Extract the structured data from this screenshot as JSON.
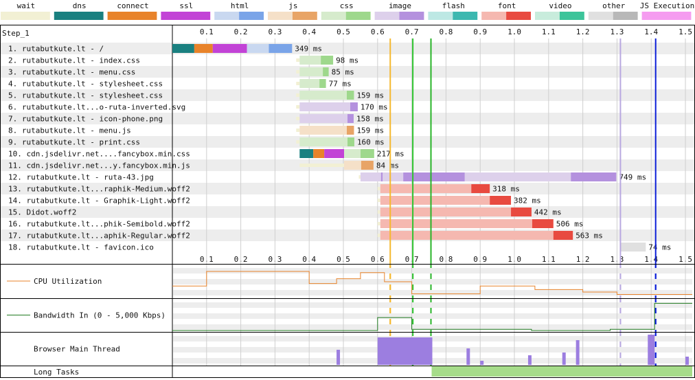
{
  "step_label": "Step_1",
  "legend": [
    {
      "label": "wait",
      "light": "#f2f0d4",
      "dark": "#f2f0d4"
    },
    {
      "label": "dns",
      "light": "#1a8080",
      "dark": "#1a8080"
    },
    {
      "label": "connect",
      "light": "#e8832a",
      "dark": "#e8832a"
    },
    {
      "label": "ssl",
      "light": "#c243d6",
      "dark": "#c243d6"
    },
    {
      "label": "html",
      "light": "#c9d8f0",
      "dark": "#7aa4e8"
    },
    {
      "label": "js",
      "light": "#f5e0c8",
      "dark": "#e8a466"
    },
    {
      "label": "css",
      "light": "#d6ebcc",
      "dark": "#9ed88c"
    },
    {
      "label": "image",
      "light": "#ddd0eb",
      "dark": "#b491de"
    },
    {
      "label": "flash",
      "light": "#bde8e4",
      "dark": "#3cb8b0"
    },
    {
      "label": "font",
      "light": "#f5b8b0",
      "dark": "#e84a40"
    },
    {
      "label": "video",
      "light": "#c8ecdc",
      "dark": "#3cc49a"
    },
    {
      "label": "other",
      "light": "#e0e0e0",
      "dark": "#b8b8b8"
    },
    {
      "label": "JS Execution",
      "light": "#f59cf0",
      "dark": "#f59cf0"
    }
  ],
  "axis": {
    "min": 0,
    "max": 1.52,
    "ticks": [
      "0.1",
      "0.2",
      "0.3",
      "0.4",
      "0.5",
      "0.6",
      "0.7",
      "0.8",
      "0.9",
      "1.0",
      "1.1",
      "1.2",
      "1.3",
      "1.4",
      "1.5"
    ]
  },
  "markers": [
    {
      "t": 0.637,
      "color": "#f5b82e"
    },
    {
      "t": 0.703,
      "color": "#2ec42e"
    },
    {
      "t": 0.756,
      "color": "#28b428"
    },
    {
      "t": 1.31,
      "color": "#b8a8e0"
    },
    {
      "t": 1.413,
      "color": "#0b1ed8"
    }
  ],
  "requests": [
    {
      "label": "1. rutabutkute.lt - /",
      "type": "html",
      "duration": "349 ms",
      "segs": [
        [
          "dns",
          0,
          0.064
        ],
        [
          "connect",
          0.064,
          0.118
        ],
        [
          "ssl",
          0.118,
          0.218
        ],
        [
          "ttfb",
          0.218,
          0.282
        ],
        [
          "dl",
          0.282,
          0.35
        ]
      ]
    },
    {
      "label": "2. rutabutkute.lt - index.css",
      "type": "css",
      "duration": "98 ms",
      "segs": [
        [
          "wait",
          0.362,
          0.372
        ],
        [
          "ttfb",
          0.372,
          0.434
        ],
        [
          "dl",
          0.434,
          0.47
        ]
      ]
    },
    {
      "label": "3. rutabutkute.lt - menu.css",
      "type": "css",
      "duration": "85 ms",
      "segs": [
        [
          "wait",
          0.362,
          0.372
        ],
        [
          "ttfb",
          0.372,
          0.44
        ],
        [
          "dl",
          0.44,
          0.457
        ]
      ]
    },
    {
      "label": "4. rutabutkute.lt - stylesheet.css",
      "type": "css",
      "duration": "77 ms",
      "segs": [
        [
          "wait",
          0.362,
          0.372
        ],
        [
          "ttfb",
          0.372,
          0.43
        ],
        [
          "dl",
          0.43,
          0.449
        ]
      ]
    },
    {
      "label": "5. rutabutkute.lt - stylesheet.css",
      "type": "css",
      "duration": "159 ms",
      "segs": [
        [
          "wait",
          0.362,
          0.372
        ],
        [
          "ttfb",
          0.372,
          0.51
        ],
        [
          "dl",
          0.51,
          0.531
        ]
      ]
    },
    {
      "label": "6. rutabutkute.lt...o-ruta-inverted.svg",
      "type": "image",
      "duration": "170 ms",
      "segs": [
        [
          "wait",
          0.362,
          0.372
        ],
        [
          "ttfb",
          0.372,
          0.52
        ],
        [
          "dl",
          0.52,
          0.542
        ]
      ]
    },
    {
      "label": "7. rutabutkute.lt - icon-phone.png",
      "type": "image",
      "duration": "158 ms",
      "segs": [
        [
          "wait",
          0.362,
          0.372
        ],
        [
          "ttfb",
          0.372,
          0.512
        ],
        [
          "dl",
          0.512,
          0.53
        ]
      ]
    },
    {
      "label": "8. rutabutkute.lt - menu.js",
      "type": "js",
      "duration": "159 ms",
      "segs": [
        [
          "wait",
          0.362,
          0.372
        ],
        [
          "ttfb",
          0.372,
          0.51
        ],
        [
          "dl",
          0.51,
          0.531
        ]
      ]
    },
    {
      "label": "9. rutabutkute.lt - print.css",
      "type": "css",
      "duration": "160 ms",
      "segs": [
        [
          "wait",
          0.362,
          0.372
        ],
        [
          "ttfb",
          0.372,
          0.512
        ],
        [
          "dl",
          0.512,
          0.532
        ]
      ]
    },
    {
      "label": "10. cdn.jsdelivr.net....fancybox.min.css",
      "type": "css",
      "duration": "217 ms",
      "segs": [
        [
          "dns",
          0.372,
          0.412
        ],
        [
          "connect",
          0.412,
          0.444
        ],
        [
          "ssl",
          0.444,
          0.502
        ],
        [
          "ttfb",
          0.502,
          0.55
        ],
        [
          "dl",
          0.55,
          0.59
        ]
      ]
    },
    {
      "label": "11. cdn.jsdelivr.net...y.fancybox.min.js",
      "type": "js",
      "duration": "84 ms",
      "segs": [
        [
          "wait",
          0.372,
          0.502
        ],
        [
          "ttfb",
          0.502,
          0.552
        ],
        [
          "dl",
          0.552,
          0.588
        ]
      ]
    },
    {
      "label": "12. rutabutkute.lt - ruta-43.jpg",
      "type": "image",
      "duration": "749 ms",
      "segs": [
        [
          "wait",
          0.545,
          0.55
        ],
        [
          "ttfb",
          0.55,
          0.61
        ],
        [
          "dl",
          0.61,
          0.615
        ],
        [
          "ttfb",
          0.615,
          0.675
        ],
        [
          "dl",
          0.675,
          0.855
        ],
        [
          "ttfb",
          0.855,
          1.165
        ],
        [
          "dl",
          1.165,
          1.298
        ]
      ]
    },
    {
      "label": "13. rutabutkute.lt...raphik-Medium.woff2",
      "type": "font",
      "duration": "318 ms",
      "segs": [
        [
          "wait",
          0.6,
          0.608
        ],
        [
          "ttfb",
          0.608,
          0.874
        ],
        [
          "dl",
          0.874,
          0.928
        ]
      ]
    },
    {
      "label": "14. rutabutkute.lt - Graphik-Light.woff2",
      "type": "font",
      "duration": "382 ms",
      "segs": [
        [
          "wait",
          0.6,
          0.608
        ],
        [
          "ttfb",
          0.608,
          0.928
        ],
        [
          "dl",
          0.928,
          0.99
        ]
      ]
    },
    {
      "label": "15. Didot.woff2",
      "type": "font",
      "duration": "442 ms",
      "segs": [
        [
          "wait",
          0.6,
          0.608
        ],
        [
          "ttfb",
          0.608,
          0.99
        ],
        [
          "dl",
          0.99,
          1.05
        ]
      ]
    },
    {
      "label": "16. rutabutkute.lt...phik-Semibold.woff2",
      "type": "font",
      "duration": "506 ms",
      "segs": [
        [
          "wait",
          0.6,
          0.608
        ],
        [
          "ttfb",
          0.608,
          1.052
        ],
        [
          "dl",
          1.052,
          1.114
        ]
      ]
    },
    {
      "label": "17. rutabutkute.lt...aphik-Regular.woff2",
      "type": "font",
      "duration": "563 ms",
      "segs": [
        [
          "wait",
          0.6,
          0.608
        ],
        [
          "ttfb",
          0.608,
          1.114
        ],
        [
          "dl",
          1.114,
          1.171
        ]
      ]
    },
    {
      "label": "18. rutabutkute.lt - favicon.ico",
      "type": "other",
      "duration": "74 ms",
      "segs": [
        [
          "ttfb",
          1.31,
          1.384
        ]
      ]
    }
  ],
  "panels": {
    "cpu": {
      "label": "CPU Utilization",
      "color": "#e8832a"
    },
    "bandwidth": {
      "label": "Bandwidth In (0 - 5,000 Kbps)",
      "color": "#1f7a1f"
    },
    "main_thread": {
      "label": "Browser Main Thread"
    },
    "long_tasks": {
      "label": "Long Tasks",
      "color": "#a6dc8a"
    }
  },
  "cpu_series": [
    [
      0,
      18
    ],
    [
      0.1,
      18
    ],
    [
      0.1,
      42
    ],
    [
      0.4,
      42
    ],
    [
      0.4,
      22
    ],
    [
      0.48,
      22
    ],
    [
      0.48,
      30
    ],
    [
      0.55,
      30
    ],
    [
      0.55,
      40
    ],
    [
      0.62,
      40
    ],
    [
      0.62,
      25
    ],
    [
      0.7,
      25
    ],
    [
      0.7,
      5
    ],
    [
      0.9,
      5
    ],
    [
      0.9,
      18
    ],
    [
      1.06,
      18
    ],
    [
      1.06,
      12
    ],
    [
      1.2,
      12
    ],
    [
      1.2,
      8
    ],
    [
      1.3,
      8
    ],
    [
      1.3,
      4
    ],
    [
      1.52,
      4
    ]
  ],
  "bw_series": [
    [
      0,
      0
    ],
    [
      0.6,
      0
    ],
    [
      0.6,
      22
    ],
    [
      0.7,
      22
    ],
    [
      0.7,
      2
    ],
    [
      1.05,
      2
    ],
    [
      1.05,
      0
    ],
    [
      1.28,
      0
    ],
    [
      1.28,
      2
    ],
    [
      1.41,
      2
    ],
    [
      1.41,
      46
    ],
    [
      1.52,
      46
    ]
  ],
  "long_tasks": [
    [
      0.758,
      1.52
    ]
  ],
  "thread_spikes": [
    [
      0.48,
      0.49,
      22
    ],
    [
      0.6,
      0.76,
      40
    ],
    [
      0.86,
      0.87,
      24
    ],
    [
      0.9,
      0.91,
      6
    ],
    [
      1.04,
      1.05,
      14
    ],
    [
      1.14,
      1.15,
      18
    ],
    [
      1.18,
      1.19,
      36
    ],
    [
      1.39,
      1.41,
      44
    ],
    [
      1.5,
      1.51,
      12
    ]
  ]
}
